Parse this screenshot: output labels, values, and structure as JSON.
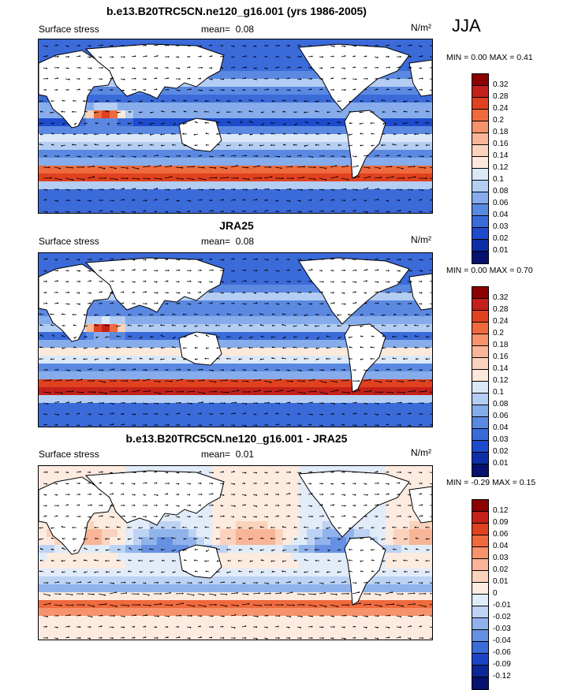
{
  "header": {
    "season": "JJA"
  },
  "colorbars": {
    "full": {
      "labels": [
        "0.32",
        "0.28",
        "0.24",
        "0.2",
        "0.18",
        "0.16",
        "0.14",
        "0.12",
        "0.1",
        "0.08",
        "0.06",
        "0.04",
        "0.03",
        "0.02",
        "0.01"
      ],
      "colors": [
        "#8b0000",
        "#c4211a",
        "#e0411f",
        "#ef6a3d",
        "#f6936d",
        "#f9b597",
        "#fbd2bc",
        "#fde9db",
        "#dbe8f8",
        "#b4cdf2",
        "#86aceb",
        "#5b89e2",
        "#3b6ad9",
        "#1e4bcc",
        "#0c2fa8",
        "#06126e"
      ]
    },
    "diff": {
      "labels": [
        "0.12",
        "0.09",
        "0.06",
        "0.04",
        "0.03",
        "0.02",
        "0.01",
        "0",
        "-0.01",
        "-0.02",
        "-0.03",
        "-0.04",
        "-0.06",
        "-0.09",
        "-0.12"
      ],
      "colors": [
        "#8b0000",
        "#c4211a",
        "#e0411f",
        "#ef6a3d",
        "#f6936d",
        "#f9b597",
        "#fbd2bc",
        "#fdebe0",
        "#e2ecf9",
        "#bcd3f4",
        "#91b3ec",
        "#6691e3",
        "#3c6cda",
        "#1c45c6",
        "#0b2897",
        "#06126e"
      ]
    }
  },
  "panels": [
    {
      "title": "b.e13.B20TRC5CN.ne120_g16.001 (yrs 1986-2005)",
      "left": "Surface stress",
      "mean_label": "mean=",
      "mean_value": "0.08",
      "units": "N/m²",
      "minmax": "MIN =  0.00 MAX =  0.41",
      "colorbar": "full",
      "field": {
        "type": "full",
        "scale": 1.0
      }
    },
    {
      "title": "JRA25",
      "left": "Surface stress",
      "mean_label": "mean=",
      "mean_value": "0.08",
      "units": "N/m²",
      "minmax": "MIN =  0.00 MAX =  0.70",
      "colorbar": "full",
      "field": {
        "type": "full",
        "scale": 1.12
      }
    },
    {
      "title": "b.e13.B20TRC5CN.ne120_g16.001 - JRA25",
      "left": "Surface stress",
      "mean_label": "mean=",
      "mean_value": "0.01",
      "units": "N/m²",
      "minmax": "MIN = -0.29 MAX =  0.15",
      "colorbar": "diff",
      "field": {
        "type": "diff",
        "scale": 1.0
      }
    }
  ],
  "chart_data": {
    "type": "heatmap",
    "variable": "Surface stress",
    "season": "JJA",
    "units": "N/m²",
    "panels": [
      {
        "name": "b.e13.B20TRC5CN.ne120_g16.001 (yrs 1986-2005)",
        "mean": 0.08,
        "min": 0.0,
        "max": 0.41
      },
      {
        "name": "JRA25",
        "mean": 0.08,
        "min": 0.0,
        "max": 0.7
      },
      {
        "name": "b.e13.B20TRC5CN.ne120_g16.001 - JRA25",
        "mean": 0.01,
        "min": -0.29,
        "max": 0.15
      }
    ],
    "contour_levels_full": [
      0.01,
      0.02,
      0.03,
      0.04,
      0.06,
      0.08,
      0.1,
      0.12,
      0.14,
      0.16,
      0.18,
      0.2,
      0.24,
      0.28,
      0.32
    ],
    "contour_levels_diff": [
      -0.12,
      -0.09,
      -0.06,
      -0.04,
      -0.03,
      -0.02,
      -0.01,
      0,
      0.01,
      0.02,
      0.03,
      0.04,
      0.06,
      0.09,
      0.12
    ]
  }
}
